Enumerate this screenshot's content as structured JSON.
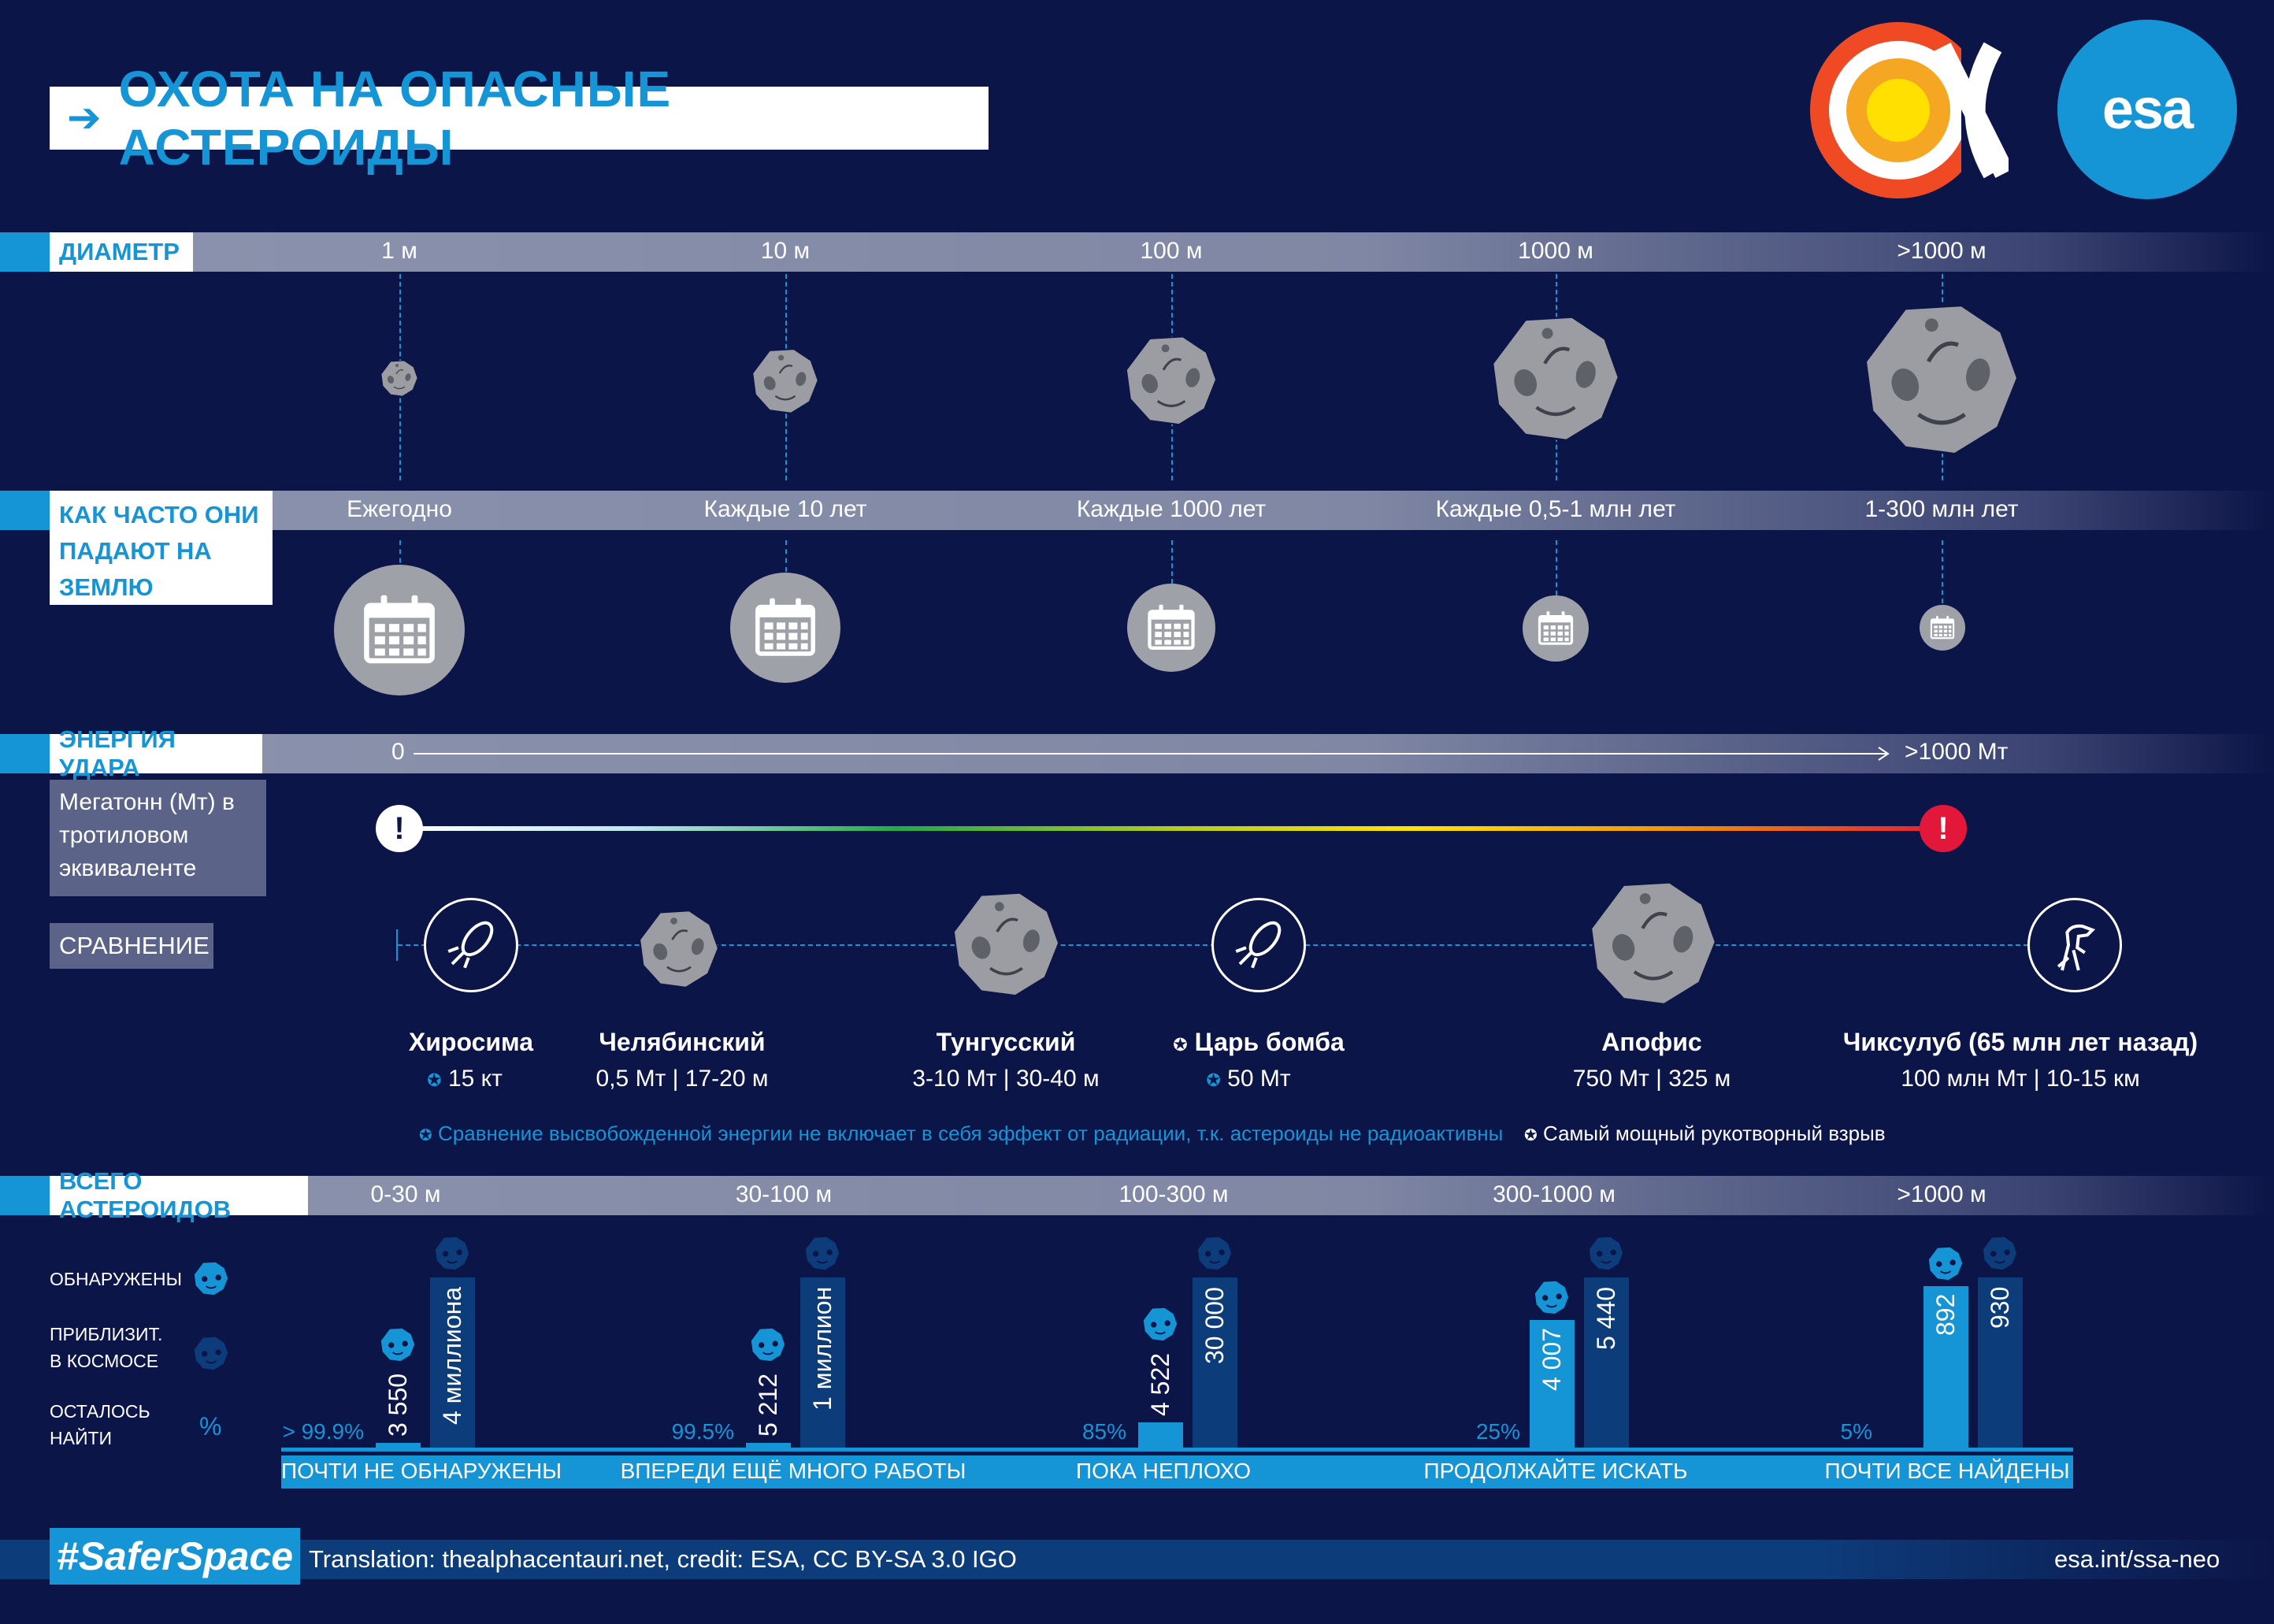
{
  "title": "ОХОТА НА ОПАСНЫЕ АСТЕРОИДЫ",
  "logos": {
    "esa": "esa"
  },
  "diameter": {
    "label": "ДИАМЕТР",
    "columns": [
      "1 м",
      "10 м",
      "100 м",
      "1000 м",
      ">1000 м"
    ]
  },
  "frequency": {
    "label": "КАК ЧАСТО ОНИ ПАДАЮТ НА ЗЕМЛЮ",
    "columns": [
      "Ежегодно",
      "Каждые 10 лет",
      "Каждые 1000 лет",
      "Каждые 0,5-1 млн лет",
      "1-300 млн лет"
    ]
  },
  "energy": {
    "label": "ЭНЕРГИЯ УДАРА",
    "start": "0",
    "end": ">1000 Мт",
    "unit_text": "Мегатонн (Мт) в тротиловом эквиваленте",
    "warning_symbol": "!"
  },
  "comparison": {
    "label": "СРАВНЕНИЕ",
    "items": [
      {
        "name": "Хиросима",
        "value": "15 кт",
        "icon": "bomb-icon"
      },
      {
        "name": "Челябинский",
        "value": "0,5 Мт | 17-20 м",
        "icon": "asteroid-icon"
      },
      {
        "name": "Тунгусский",
        "value": "3-10 Мт | 30-40 м",
        "icon": "asteroid-icon"
      },
      {
        "name": "Царь бомба",
        "value": "50 Мт",
        "icon": "bomb-icon"
      },
      {
        "name": "Апофис",
        "value": "750 Мт | 325 м",
        "icon": "asteroid-icon"
      },
      {
        "name": "Чиксулуб (65 млн лет назад)",
        "value": "100 млн Мт | 10-15 км",
        "icon": "dinosaur-icon"
      }
    ],
    "note_radiation": "Сравнение высвобожденной энергии не включает в себя эффект от радиации, т.к. астероиды не радиоактивны",
    "note_powerful": "Самый мощный рукотворный взрыв"
  },
  "total": {
    "label": "ВСЕГО АСТЕРОИДОВ",
    "columns": [
      "0-30 м",
      "30-100 м",
      "100-300 м",
      "300-1000 м",
      ">1000 м"
    ],
    "legend": {
      "discovered": "ОБНАРУЖЕНЫ",
      "approx": "ПРИБЛИЗИТ. В КОСМОСЕ",
      "remaining": "ОСТАЛОСЬ НАЙТИ",
      "pct_symbol": "%"
    },
    "groups": [
      {
        "discovered": "3 550",
        "estimated": "4 миллиона",
        "remaining": "> 99.9%",
        "remaining_frac": 0.999,
        "status": "ПОЧТИ НЕ ОБНАРУЖЕНЫ"
      },
      {
        "discovered": "5 212",
        "estimated": "1 миллион",
        "remaining": "99.5%",
        "remaining_frac": 0.995,
        "status": "ВПЕРЕДИ ЕЩЁ МНОГО РАБОТЫ"
      },
      {
        "discovered": "4 522",
        "estimated": "30 000",
        "remaining": "85%",
        "remaining_frac": 0.85,
        "status": "ПОКА НЕПЛОХО"
      },
      {
        "discovered": "4 007",
        "estimated": "5 440",
        "remaining": "25%",
        "remaining_frac": 0.25,
        "status": "ПРОДОЛЖАЙТЕ ИСКАТЬ"
      },
      {
        "discovered": "892",
        "estimated": "930",
        "remaining": "5%",
        "remaining_frac": 0.05,
        "status": "ПОЧТИ ВСЕ НАЙДЕНЫ"
      }
    ]
  },
  "footer": {
    "hashtag": "#SaferSpace",
    "credit": "Translation: thealphacentauri.net, credit: ESA, CC BY-SA 3.0 IGO",
    "url": "esa.int/ssa-neo"
  },
  "colors": {
    "accent": "#1594d6",
    "background": "#0c1547",
    "dark_bar": "#0d3c7a",
    "warning": "#e3173a"
  }
}
